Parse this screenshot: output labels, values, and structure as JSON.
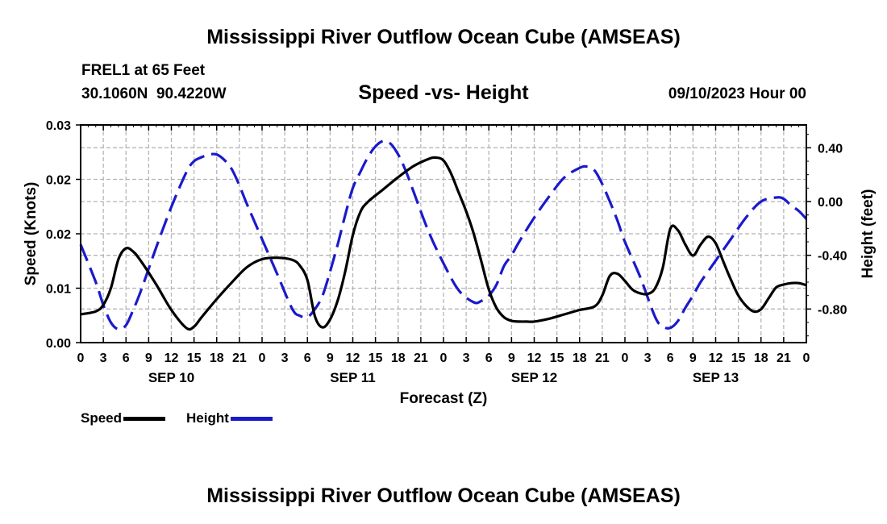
{
  "page": {
    "title_top": "Mississippi River Outflow Ocean Cube (AMSEAS)",
    "title_bottom": "Mississippi River Outflow Ocean Cube (AMSEAS)",
    "station": "FREL1 at 65 Feet",
    "coords": "30.1060N  90.4220W",
    "subtitle": "Speed -vs- Height",
    "date": "09/10/2023 Hour 00"
  },
  "legend": {
    "speed_label": "Speed",
    "height_label": "Height",
    "speed_color": "#000000",
    "height_color": "#1a1acc"
  },
  "chart_data": {
    "type": "line",
    "title": "Speed -vs- Height",
    "xlabel": "Forecast (Z)",
    "ylabel_left": "Speed (Knots)",
    "ylabel_right": "Height (feet)",
    "xlim": [
      0,
      96
    ],
    "ylim_left": [
      0,
      0.03
    ],
    "ylim_right": [
      -1.05,
      0.57
    ],
    "x_tick_labels": [
      "0",
      "3",
      "6",
      "9",
      "12",
      "15",
      "18",
      "21",
      "0",
      "3",
      "6",
      "9",
      "12",
      "15",
      "18",
      "21",
      "0",
      "3",
      "6",
      "9",
      "12",
      "15",
      "18",
      "21",
      "0",
      "3",
      "6",
      "9",
      "12",
      "15",
      "18",
      "21",
      "0"
    ],
    "day_labels": [
      {
        "label": "SEP 10",
        "hour": 12
      },
      {
        "label": "SEP 11",
        "hour": 36
      },
      {
        "label": "SEP 12",
        "hour": 60
      },
      {
        "label": "SEP 13",
        "hour": 84
      }
    ],
    "y_left_tick_labels": [
      "0.00",
      "0.01",
      "0.02",
      "0.02",
      "0.03"
    ],
    "y_left_tick_values": [
      0,
      0.0075,
      0.015,
      0.0225,
      0.03
    ],
    "y_right_tick_labels": [
      "0.40",
      "0.00",
      "-0.40",
      "-0.80"
    ],
    "y_right_tick_values": [
      0.4,
      0.0,
      -0.4,
      -0.8
    ],
    "grid": true,
    "series": [
      {
        "name": "Speed",
        "axis": "left",
        "style": "solid",
        "x": [
          0,
          2,
          3,
          4,
          5,
          6,
          7,
          8,
          10,
          12,
          14,
          15,
          16,
          18,
          20,
          22,
          24,
          26,
          28,
          29,
          30,
          31,
          32,
          33,
          34,
          35,
          36,
          37,
          38,
          40,
          42,
          44,
          46,
          47,
          48,
          49,
          50,
          51,
          52,
          53,
          54,
          55,
          56,
          57,
          58,
          59,
          60,
          62,
          64,
          66,
          68,
          69,
          70,
          71,
          72,
          73,
          74,
          75,
          76,
          77,
          78,
          79,
          80,
          81,
          82,
          83,
          84,
          85,
          86,
          87,
          88,
          89,
          90,
          91,
          92,
          93,
          94,
          95,
          96
        ],
        "values": [
          0.0039,
          0.0043,
          0.0052,
          0.0075,
          0.0115,
          0.013,
          0.0125,
          0.0112,
          0.008,
          0.0045,
          0.002,
          0.0022,
          0.0035,
          0.006,
          0.0083,
          0.0104,
          0.0115,
          0.0117,
          0.0114,
          0.0106,
          0.0086,
          0.0036,
          0.0021,
          0.0032,
          0.0058,
          0.0098,
          0.0148,
          0.018,
          0.0194,
          0.0211,
          0.0228,
          0.0243,
          0.0253,
          0.0255,
          0.0251,
          0.0233,
          0.0207,
          0.0181,
          0.015,
          0.0112,
          0.0073,
          0.0048,
          0.0035,
          0.003,
          0.0029,
          0.0029,
          0.0029,
          0.0033,
          0.0039,
          0.0045,
          0.005,
          0.0065,
          0.0092,
          0.0095,
          0.0085,
          0.0073,
          0.0068,
          0.0067,
          0.0075,
          0.0103,
          0.0157,
          0.0155,
          0.0135,
          0.012,
          0.0135,
          0.0146,
          0.0137,
          0.0112,
          0.0087,
          0.0065,
          0.0051,
          0.0043,
          0.0046,
          0.0061,
          0.0076,
          0.008,
          0.0082,
          0.0082,
          0.0079
        ]
      },
      {
        "name": "Height",
        "axis": "right",
        "style": "dashed",
        "x": [
          0,
          2,
          3,
          4,
          5,
          6,
          7,
          8,
          10,
          12,
          14,
          15,
          16,
          17,
          18,
          19,
          20,
          21,
          22,
          24,
          26,
          28,
          29,
          30,
          31,
          32,
          33,
          34,
          35,
          36,
          37,
          38,
          39,
          40,
          41,
          42,
          43,
          44,
          46,
          48,
          50,
          52,
          53,
          54,
          55,
          56,
          57,
          58,
          60,
          62,
          64,
          66,
          67,
          68,
          69,
          70,
          71,
          72,
          74,
          76,
          77,
          78,
          79,
          80,
          81,
          82,
          83,
          84,
          86,
          88,
          90,
          92,
          93,
          94,
          95,
          96
        ],
        "values": [
          -0.32,
          -0.6,
          -0.77,
          -0.9,
          -0.95,
          -0.92,
          -0.8,
          -0.66,
          -0.34,
          -0.04,
          0.22,
          0.3,
          0.33,
          0.35,
          0.35,
          0.31,
          0.24,
          0.12,
          -0.02,
          -0.28,
          -0.54,
          -0.8,
          -0.85,
          -0.86,
          -0.8,
          -0.7,
          -0.52,
          -0.32,
          -0.1,
          0.1,
          0.22,
          0.33,
          0.41,
          0.45,
          0.43,
          0.35,
          0.23,
          0.08,
          -0.22,
          -0.46,
          -0.66,
          -0.75,
          -0.74,
          -0.7,
          -0.62,
          -0.48,
          -0.4,
          -0.3,
          -0.12,
          0.04,
          0.18,
          0.25,
          0.26,
          0.23,
          0.13,
          0.0,
          -0.14,
          -0.3,
          -0.56,
          -0.86,
          -0.93,
          -0.94,
          -0.89,
          -0.79,
          -0.7,
          -0.6,
          -0.52,
          -0.44,
          -0.28,
          -0.12,
          0.0,
          0.03,
          0.02,
          -0.03,
          -0.07,
          -0.13
        ]
      }
    ]
  }
}
